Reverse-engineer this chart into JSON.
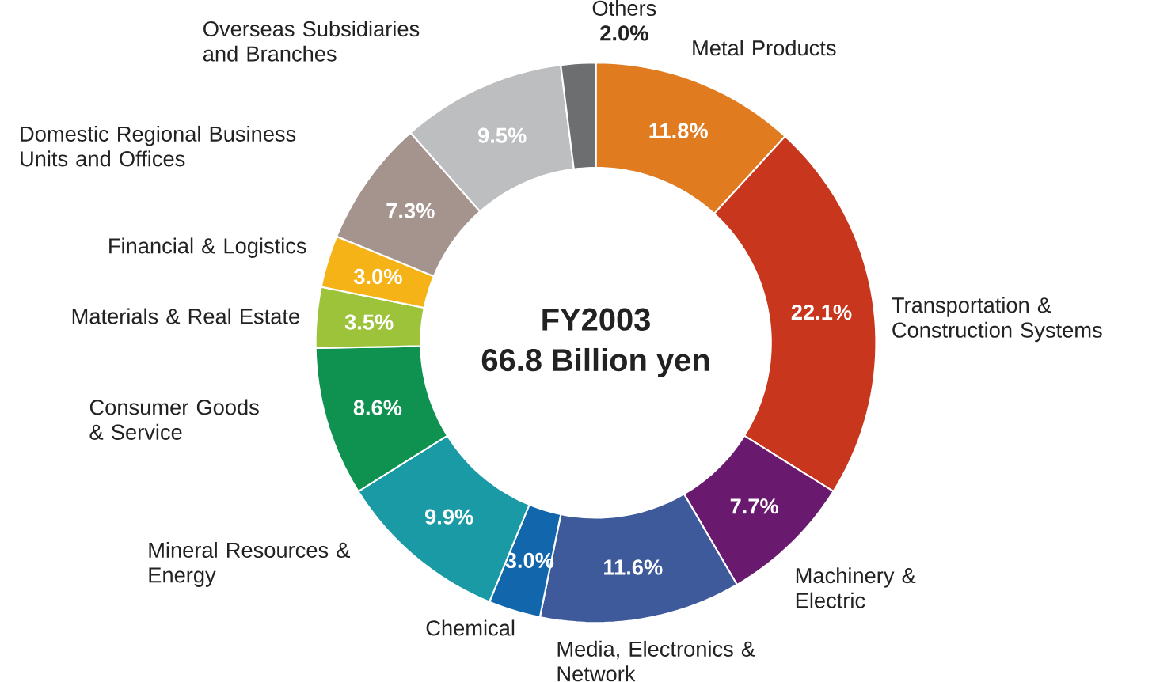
{
  "chart_data": {
    "type": "donut",
    "title": "FY2003",
    "subtitle": "66.8 Billion yen",
    "categories": [
      "Metal Products",
      "Transportation & Construction Systems",
      "Machinery & Electric",
      "Media, Electronics & Network",
      "Chemical",
      "Mineral Resources & Energy",
      "Consumer Goods & Service",
      "Materials & Real Estate",
      "Financial & Logistics",
      "Domestic Regional Business Units and Offices",
      "Overseas Subsidiaries and Branches",
      "Others"
    ],
    "values": [
      11.8,
      22.1,
      7.7,
      11.6,
      3.0,
      9.9,
      8.6,
      3.5,
      3.0,
      7.3,
      9.5,
      2.0
    ],
    "value_labels": [
      "11.8%",
      "22.1%",
      "7.7%",
      "11.6%",
      "3.0%",
      "9.9%",
      "8.6%",
      "3.5%",
      "3.0%",
      "7.3%",
      "9.5%",
      "2.0%"
    ],
    "colors": [
      "#e07b20",
      "#c8361e",
      "#6a1a6e",
      "#3f5a9a",
      "#1266ac",
      "#1a9aa5",
      "#0f9150",
      "#9cc33a",
      "#f5b317",
      "#a4948d",
      "#bdbec0",
      "#6d6e70"
    ]
  }
}
